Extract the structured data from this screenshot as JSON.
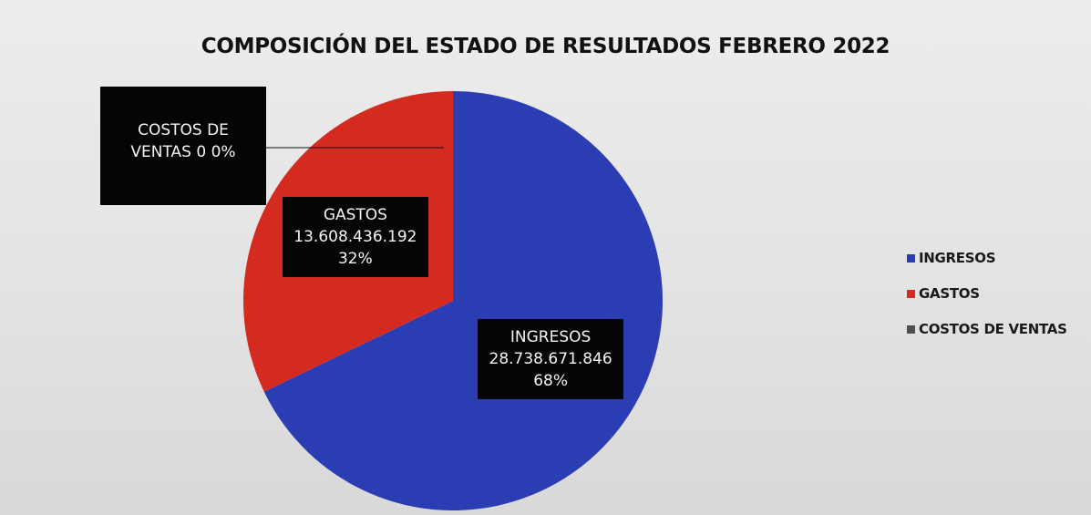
{
  "chart_data": {
    "type": "pie",
    "title": "COMPOSICIÓN DEL ESTADO DE RESULTADOS FEBRERO 2022",
    "categories": [
      "INGRESOS",
      "GASTOS",
      "COSTOS DE VENTAS"
    ],
    "values": [
      28738671846,
      13608436192,
      0
    ],
    "value_labels": [
      "28.738.671.846",
      "13.608.436.192",
      "0"
    ],
    "percents": [
      68,
      32,
      0
    ],
    "percent_labels": [
      "68%",
      "32%",
      "0%"
    ],
    "colors": [
      "#2b3db3",
      "#d42a1f",
      "#4f4f4f"
    ],
    "legend": "right"
  }
}
